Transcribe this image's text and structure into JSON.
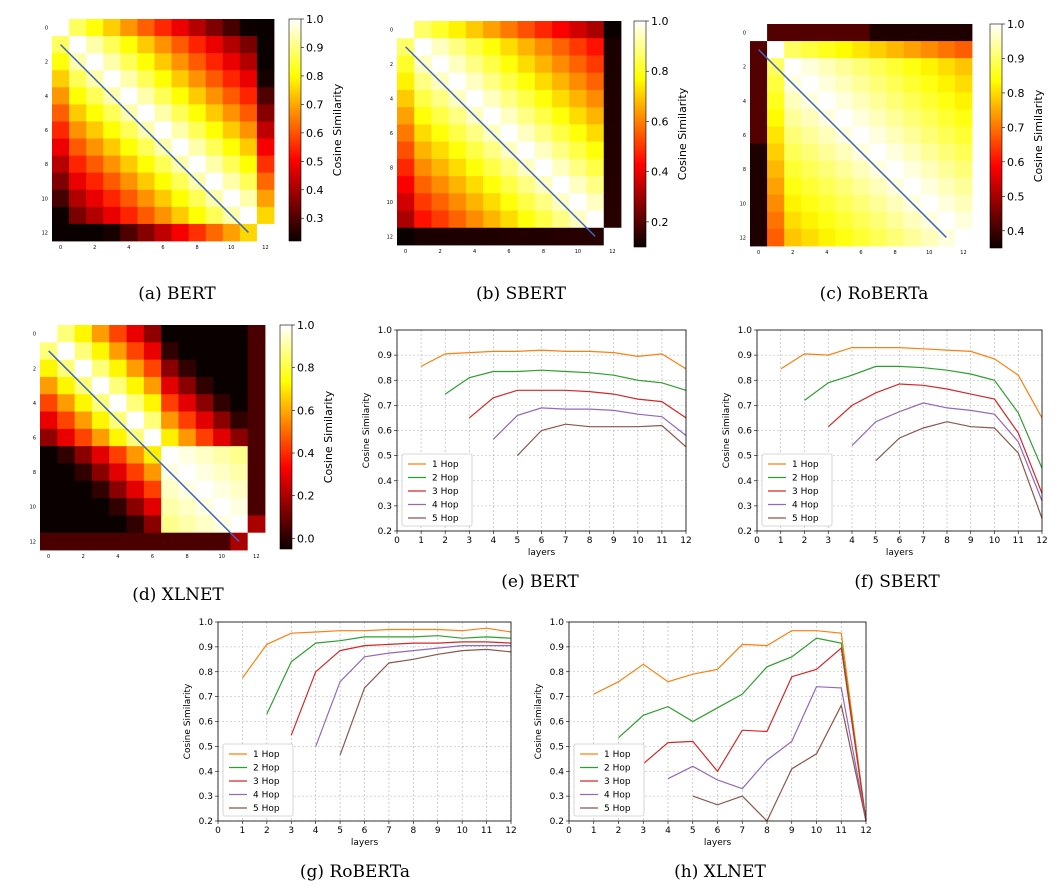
{
  "chart_data": [
    {
      "id": "a",
      "type": "heatmap",
      "caption": "(a)  BERT",
      "size": 13,
      "profile": "bert",
      "ticks": [
        "0",
        "2",
        "4",
        "6",
        "8",
        "10",
        "12"
      ],
      "colorbar": {
        "label": "Cosine Similarity",
        "min": 0.2,
        "max": 1.0,
        "ticks": [
          "0.3",
          "0.4",
          "0.5",
          "0.6",
          "0.7",
          "0.8",
          "0.9",
          "1.0"
        ],
        "tick_values": [
          0.3,
          0.4,
          0.5,
          0.6,
          0.7,
          0.8,
          0.9,
          1.0
        ],
        "vmin": 0.22,
        "vmax": 1.0
      },
      "diagonal_line": {
        "from": [
          0,
          1
        ],
        "to": [
          11,
          12
        ],
        "color": "#3a66c4"
      }
    },
    {
      "id": "b",
      "type": "heatmap",
      "caption": "(b)  SBERT",
      "size": 13,
      "profile": "sbert",
      "ticks": [
        "0",
        "2",
        "4",
        "6",
        "8",
        "10",
        "12"
      ],
      "colorbar": {
        "label": "Cosine Similarity",
        "ticks": [
          "0.2",
          "0.4",
          "0.6",
          "0.8",
          "1.0"
        ],
        "tick_values": [
          0.2,
          0.4,
          0.6,
          0.8,
          1.0
        ],
        "vmin": 0.1,
        "vmax": 1.0
      },
      "diagonal_line": {
        "from": [
          0,
          1
        ],
        "to": [
          11,
          12
        ],
        "color": "#3a66c4"
      }
    },
    {
      "id": "c",
      "type": "heatmap",
      "caption": "(c)  RoBERTa",
      "size": 13,
      "profile": "roberta",
      "ticks": [
        "0",
        "2",
        "4",
        "6",
        "8",
        "10",
        "12"
      ],
      "colorbar": {
        "label": "Cosine Similarity",
        "ticks": [
          "0.4",
          "0.5",
          "0.6",
          "0.7",
          "0.8",
          "0.9",
          "1.0"
        ],
        "tick_values": [
          0.4,
          0.5,
          0.6,
          0.7,
          0.8,
          0.9,
          1.0
        ],
        "vmin": 0.35,
        "vmax": 1.0
      },
      "diagonal_line": {
        "from": [
          0,
          1
        ],
        "to": [
          11,
          12
        ],
        "color": "#3a66c4"
      }
    },
    {
      "id": "d",
      "type": "heatmap",
      "caption": "(d)  XLNET",
      "size": 13,
      "profile": "xlnet",
      "ticks": [
        "0",
        "2",
        "4",
        "6",
        "8",
        "10",
        "12"
      ],
      "colorbar": {
        "label": "Cosine Similarity",
        "ticks": [
          "0.0",
          "0.2",
          "0.4",
          "0.6",
          "0.8",
          "1.0"
        ],
        "tick_values": [
          0.0,
          0.2,
          0.4,
          0.6,
          0.8,
          1.0
        ],
        "vmin": -0.05,
        "vmax": 1.0
      },
      "diagonal_line": {
        "from": [
          0,
          1
        ],
        "to": [
          11,
          12
        ],
        "color": "#3a66c4"
      }
    },
    {
      "id": "e",
      "type": "line",
      "caption": "(e)  BERT",
      "xlabel": "layers",
      "ylabel": "Cosine Similarity",
      "xlim": [
        0,
        12
      ],
      "ylim": [
        0.2,
        1.0
      ],
      "xticks": [
        0,
        1,
        2,
        3,
        4,
        5,
        6,
        7,
        8,
        9,
        10,
        11,
        12
      ],
      "yticks": [
        0.2,
        0.3,
        0.4,
        0.5,
        0.6,
        0.7,
        0.8,
        0.9,
        1.0
      ],
      "legend": "lower-left",
      "series": [
        {
          "name": "1 Hop",
          "color": "#ff7f0e",
          "start": 1,
          "values": [
            0.855,
            0.905,
            0.91,
            0.915,
            0.915,
            0.92,
            0.915,
            0.915,
            0.91,
            0.895,
            0.905,
            0.845
          ]
        },
        {
          "name": "2 Hop",
          "color": "#2ca02c",
          "start": 2,
          "values": [
            0.745,
            0.81,
            0.835,
            0.835,
            0.84,
            0.835,
            0.83,
            0.82,
            0.8,
            0.79,
            0.76
          ]
        },
        {
          "name": "3 Hop",
          "color": "#d62728",
          "start": 3,
          "values": [
            0.65,
            0.73,
            0.76,
            0.76,
            0.76,
            0.755,
            0.745,
            0.725,
            0.715,
            0.65
          ]
        },
        {
          "name": "4 Hop",
          "color": "#9467bd",
          "start": 4,
          "values": [
            0.565,
            0.66,
            0.69,
            0.685,
            0.685,
            0.68,
            0.665,
            0.655,
            0.58
          ]
        },
        {
          "name": "5 Hop",
          "color": "#8c564b",
          "start": 5,
          "values": [
            0.5,
            0.6,
            0.625,
            0.615,
            0.615,
            0.615,
            0.62,
            0.535
          ]
        }
      ]
    },
    {
      "id": "f",
      "type": "line",
      "caption": "(f)  SBERT",
      "xlabel": "layers",
      "ylabel": "Cosine Similarity",
      "xlim": [
        0,
        12
      ],
      "ylim": [
        0.2,
        1.0
      ],
      "xticks": [
        0,
        1,
        2,
        3,
        4,
        5,
        6,
        7,
        8,
        9,
        10,
        11,
        12
      ],
      "yticks": [
        0.2,
        0.3,
        0.4,
        0.5,
        0.6,
        0.7,
        0.8,
        0.9,
        1.0
      ],
      "legend": "lower-left",
      "series": [
        {
          "name": "1 Hop",
          "color": "#ff7f0e",
          "start": 1,
          "values": [
            0.845,
            0.905,
            0.9,
            0.93,
            0.93,
            0.93,
            0.925,
            0.92,
            0.915,
            0.885,
            0.82,
            0.65
          ]
        },
        {
          "name": "2 Hop",
          "color": "#2ca02c",
          "start": 2,
          "values": [
            0.72,
            0.79,
            0.82,
            0.855,
            0.855,
            0.85,
            0.84,
            0.825,
            0.8,
            0.67,
            0.45
          ]
        },
        {
          "name": "3 Hop",
          "color": "#d62728",
          "start": 3,
          "values": [
            0.615,
            0.7,
            0.75,
            0.785,
            0.78,
            0.765,
            0.745,
            0.725,
            0.59,
            0.35
          ]
        },
        {
          "name": "4 Hop",
          "color": "#9467bd",
          "start": 4,
          "values": [
            0.54,
            0.635,
            0.675,
            0.71,
            0.69,
            0.68,
            0.665,
            0.555,
            0.32
          ]
        },
        {
          "name": "5 Hop",
          "color": "#8c564b",
          "start": 5,
          "values": [
            0.48,
            0.57,
            0.61,
            0.635,
            0.615,
            0.61,
            0.51,
            0.25
          ]
        }
      ]
    },
    {
      "id": "g",
      "type": "line",
      "caption": "(g)  RoBERTa",
      "xlabel": "layers",
      "ylabel": "Cosine Similarity",
      "xlim": [
        0,
        12
      ],
      "ylim": [
        0.2,
        1.0
      ],
      "xticks": [
        0,
        1,
        2,
        3,
        4,
        5,
        6,
        7,
        8,
        9,
        10,
        11,
        12
      ],
      "yticks": [
        0.2,
        0.3,
        0.4,
        0.5,
        0.6,
        0.7,
        0.8,
        0.9,
        1.0
      ],
      "legend": "lower-left",
      "series": [
        {
          "name": "1 Hop",
          "color": "#ff7f0e",
          "start": 1,
          "values": [
            0.775,
            0.91,
            0.955,
            0.96,
            0.965,
            0.965,
            0.97,
            0.97,
            0.97,
            0.965,
            0.975,
            0.96
          ]
        },
        {
          "name": "2 Hop",
          "color": "#2ca02c",
          "start": 2,
          "values": [
            0.63,
            0.84,
            0.915,
            0.925,
            0.94,
            0.94,
            0.94,
            0.945,
            0.935,
            0.94,
            0.935
          ]
        },
        {
          "name": "3 Hop",
          "color": "#d62728",
          "start": 3,
          "values": [
            0.545,
            0.8,
            0.885,
            0.905,
            0.91,
            0.915,
            0.915,
            0.92,
            0.92,
            0.915
          ]
        },
        {
          "name": "4 Hop",
          "color": "#9467bd",
          "start": 4,
          "values": [
            0.5,
            0.76,
            0.86,
            0.875,
            0.885,
            0.895,
            0.905,
            0.905,
            0.905
          ]
        },
        {
          "name": "5 Hop",
          "color": "#8c564b",
          "start": 5,
          "values": [
            0.465,
            0.735,
            0.835,
            0.85,
            0.87,
            0.885,
            0.89,
            0.88
          ]
        }
      ]
    },
    {
      "id": "h",
      "type": "line",
      "caption": "(h)  XLNET",
      "xlabel": "layers",
      "ylabel": "Cosine Similarity",
      "xlim": [
        0,
        12
      ],
      "ylim": [
        0.2,
        1.0
      ],
      "xticks": [
        0,
        1,
        2,
        3,
        4,
        5,
        6,
        7,
        8,
        9,
        10,
        11,
        12
      ],
      "yticks": [
        0.2,
        0.3,
        0.4,
        0.5,
        0.6,
        0.7,
        0.8,
        0.9,
        1.0
      ],
      "legend": "lower-left",
      "series": [
        {
          "name": "1 Hop",
          "color": "#ff7f0e",
          "start": 1,
          "values": [
            0.71,
            0.76,
            0.83,
            0.76,
            0.79,
            0.81,
            0.91,
            0.905,
            0.965,
            0.965,
            0.955,
            0.2
          ]
        },
        {
          "name": "2 Hop",
          "color": "#2ca02c",
          "start": 2,
          "values": [
            0.535,
            0.625,
            0.66,
            0.6,
            0.655,
            0.71,
            0.82,
            0.86,
            0.935,
            0.915,
            0.2
          ]
        },
        {
          "name": "3 Hop",
          "color": "#d62728",
          "start": 3,
          "values": [
            0.43,
            0.515,
            0.52,
            0.4,
            0.565,
            0.56,
            0.78,
            0.81,
            0.895,
            0.2
          ]
        },
        {
          "name": "4 Hop",
          "color": "#9467bd",
          "start": 4,
          "values": [
            0.37,
            0.42,
            0.365,
            0.33,
            0.445,
            0.52,
            0.74,
            0.735,
            0.2
          ]
        },
        {
          "name": "5 Hop",
          "color": "#8c564b",
          "start": 5,
          "values": [
            0.3,
            0.265,
            0.3,
            0.2,
            0.41,
            0.47,
            0.665,
            0.2
          ]
        }
      ]
    }
  ]
}
